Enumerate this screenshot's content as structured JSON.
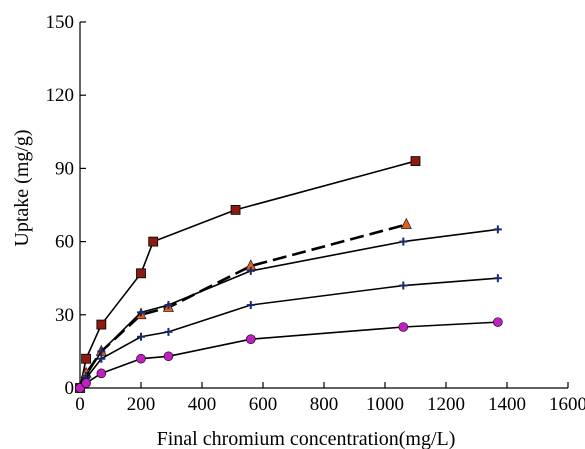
{
  "chart_data": {
    "type": "line",
    "title": "",
    "xlabel": "Final chromium concentration(mg/L)",
    "ylabel": "Uptake (mg/g)",
    "xlim": [
      0,
      1600
    ],
    "ylim": [
      0,
      150
    ],
    "x_ticks": [
      0,
      200,
      400,
      600,
      800,
      1000,
      1200,
      1400,
      1600
    ],
    "y_ticks": [
      0,
      30,
      60,
      90,
      120,
      150
    ],
    "grid": false,
    "legend": "none",
    "series": [
      {
        "color": "#8b1a10",
        "marker": "square",
        "dash": false,
        "points": [
          [
            0,
            0
          ],
          [
            20,
            12
          ],
          [
            70,
            26
          ],
          [
            200,
            47
          ],
          [
            240,
            60
          ],
          [
            510,
            73
          ],
          [
            1100,
            93
          ]
        ]
      },
      {
        "color": "#e06020",
        "marker": "triangle",
        "dash": true,
        "points": [
          [
            0,
            0
          ],
          [
            20,
            6
          ],
          [
            70,
            15
          ],
          [
            200,
            30
          ],
          [
            290,
            33
          ],
          [
            560,
            50
          ],
          [
            1070,
            67
          ]
        ]
      },
      {
        "color": "#1a2a6c",
        "marker": "plus",
        "dash": false,
        "points": [
          [
            0,
            0
          ],
          [
            20,
            5
          ],
          [
            70,
            15
          ],
          [
            200,
            31
          ],
          [
            290,
            34
          ],
          [
            560,
            48
          ],
          [
            1060,
            60
          ],
          [
            1370,
            65
          ]
        ]
      },
      {
        "color": "#1a2a6c",
        "marker": "plus",
        "dash": false,
        "points": [
          [
            0,
            0
          ],
          [
            20,
            4
          ],
          [
            70,
            12
          ],
          [
            200,
            21
          ],
          [
            290,
            23
          ],
          [
            560,
            34
          ],
          [
            1060,
            42
          ],
          [
            1370,
            45
          ]
        ]
      },
      {
        "color": "#c020c0",
        "marker": "circle",
        "dash": false,
        "points": [
          [
            0,
            0
          ],
          [
            20,
            2
          ],
          [
            70,
            6
          ],
          [
            200,
            12
          ],
          [
            290,
            13
          ],
          [
            560,
            20
          ],
          [
            1060,
            25
          ],
          [
            1370,
            27
          ]
        ]
      }
    ]
  }
}
